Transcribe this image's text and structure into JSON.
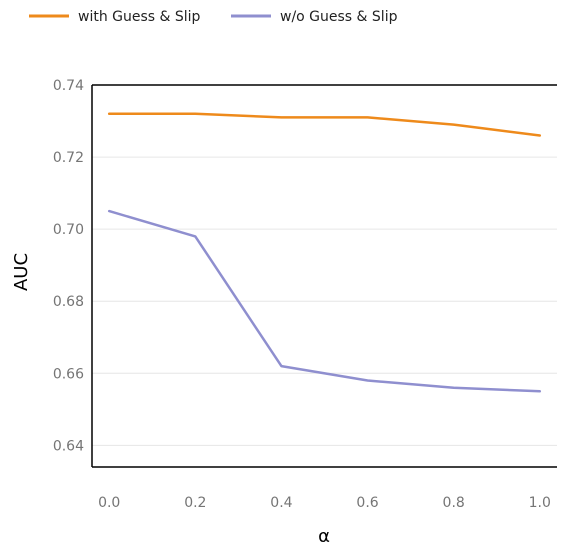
{
  "chart_data": {
    "type": "line",
    "title": "",
    "xlabel": "α",
    "ylabel": "AUC",
    "x": [
      0.0,
      0.2,
      0.4,
      0.6,
      0.8,
      1.0
    ],
    "x_tick_labels": [
      "0.0",
      "0.2",
      "0.4",
      "0.6",
      "0.8",
      "1.0"
    ],
    "y_ticks": [
      0.64,
      0.66,
      0.68,
      0.7,
      0.72,
      0.74
    ],
    "y_tick_labels": [
      "0.64",
      "0.66",
      "0.68",
      "0.70",
      "0.72",
      "0.74"
    ],
    "xlim": [
      -0.04,
      1.04
    ],
    "ylim": [
      0.634,
      0.74
    ],
    "grid": true,
    "legend_position": "top-left",
    "series": [
      {
        "name": "with Guess & Slip",
        "color": "#EE8A1B",
        "values": [
          0.732,
          0.732,
          0.731,
          0.731,
          0.729,
          0.726
        ]
      },
      {
        "name": "w/o Guess & Slip",
        "color": "#8F8FCF",
        "values": [
          0.705,
          0.698,
          0.662,
          0.658,
          0.656,
          0.655
        ]
      }
    ]
  }
}
